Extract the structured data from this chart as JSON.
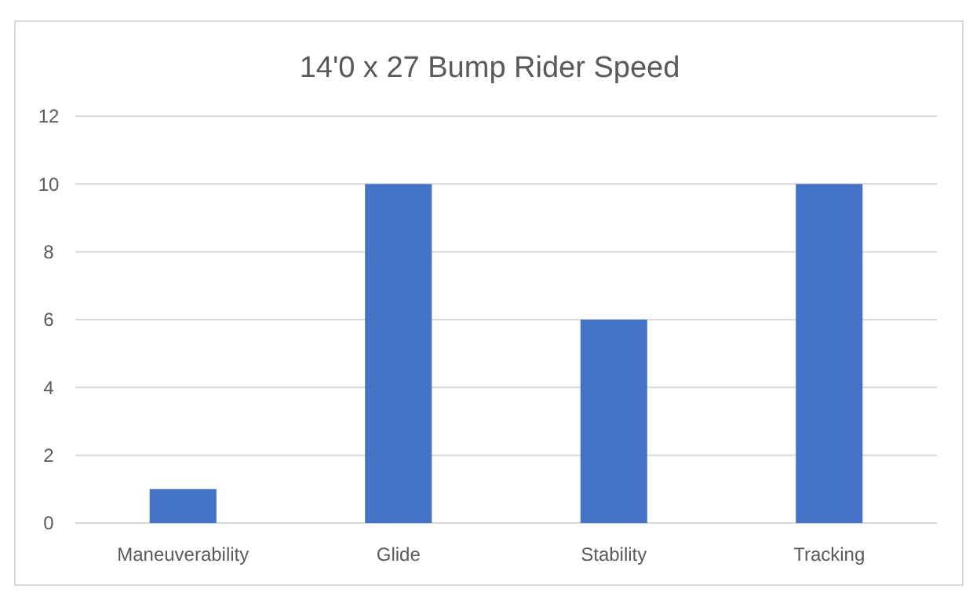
{
  "chart_data": {
    "type": "bar",
    "title": "14'0 x 27 Bump Rider Speed",
    "categories": [
      "Maneuverability",
      "Glide",
      "Stability",
      "Tracking"
    ],
    "values": [
      1,
      10,
      6,
      10
    ],
    "color": "#4472c4",
    "ylim": [
      0,
      12
    ],
    "yticks": [
      0,
      2,
      4,
      6,
      8,
      10,
      12
    ],
    "grid": "y"
  }
}
